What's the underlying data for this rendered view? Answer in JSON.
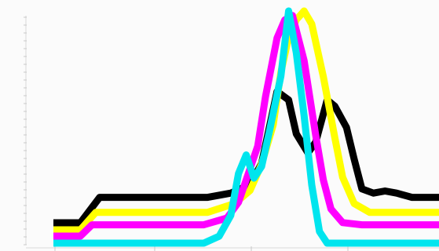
{
  "chart_data": {
    "type": "line",
    "title": "",
    "xlabel": "",
    "ylabel": "",
    "xlim": [
      0,
      100
    ],
    "ylim": [
      0,
      100
    ],
    "grid": false,
    "legend": "none",
    "y_tick_count": 30,
    "x_tick_positions": [
      7,
      30,
      52,
      75
    ],
    "series": [
      {
        "color": "#000000",
        "x": [
          0,
          7,
          12,
          30,
          40,
          46,
          51,
          54,
          56,
          58,
          61,
          63,
          66,
          68,
          71,
          73,
          76,
          78,
          80,
          83,
          86,
          89,
          93,
          97,
          100
        ],
        "y": [
          0,
          0,
          12,
          12,
          12,
          14,
          18,
          28,
          45,
          62,
          58,
          42,
          33,
          38,
          58,
          55,
          45,
          30,
          16,
          14,
          15,
          14,
          12,
          12,
          12
        ]
      },
      {
        "color": "#ffff00",
        "x": [
          0,
          7,
          11,
          30,
          40,
          47,
          51,
          54,
          57,
          59,
          61,
          63,
          65,
          67,
          70,
          73,
          75,
          78,
          82,
          88,
          93,
          100
        ],
        "y": [
          0,
          0,
          8,
          8,
          8,
          12,
          18,
          30,
          48,
          72,
          88,
          96,
          100,
          94,
          70,
          42,
          24,
          12,
          8,
          8,
          8,
          8
        ]
      },
      {
        "color": "#ff00ff",
        "x": [
          0,
          7,
          10,
          30,
          39,
          45,
          48,
          50,
          53,
          55,
          58,
          60,
          62,
          65,
          68,
          70,
          72,
          75,
          80,
          86,
          93,
          100
        ],
        "y": [
          0,
          0,
          5,
          5,
          5,
          8,
          15,
          25,
          40,
          62,
          88,
          96,
          98,
          78,
          45,
          25,
          12,
          6,
          5,
          5,
          5,
          5
        ]
      },
      {
        "color": "#00e5ee",
        "x": [
          0,
          7,
          10,
          30,
          39,
          43,
          46,
          48,
          50,
          52,
          54,
          56,
          59,
          61,
          63,
          65,
          67,
          69,
          71,
          75,
          80,
          90,
          100
        ],
        "y": [
          0,
          0,
          0,
          0,
          0,
          3,
          12,
          30,
          38,
          28,
          33,
          48,
          72,
          100,
          82,
          55,
          25,
          5,
          0,
          0,
          0,
          0,
          0
        ]
      }
    ]
  }
}
